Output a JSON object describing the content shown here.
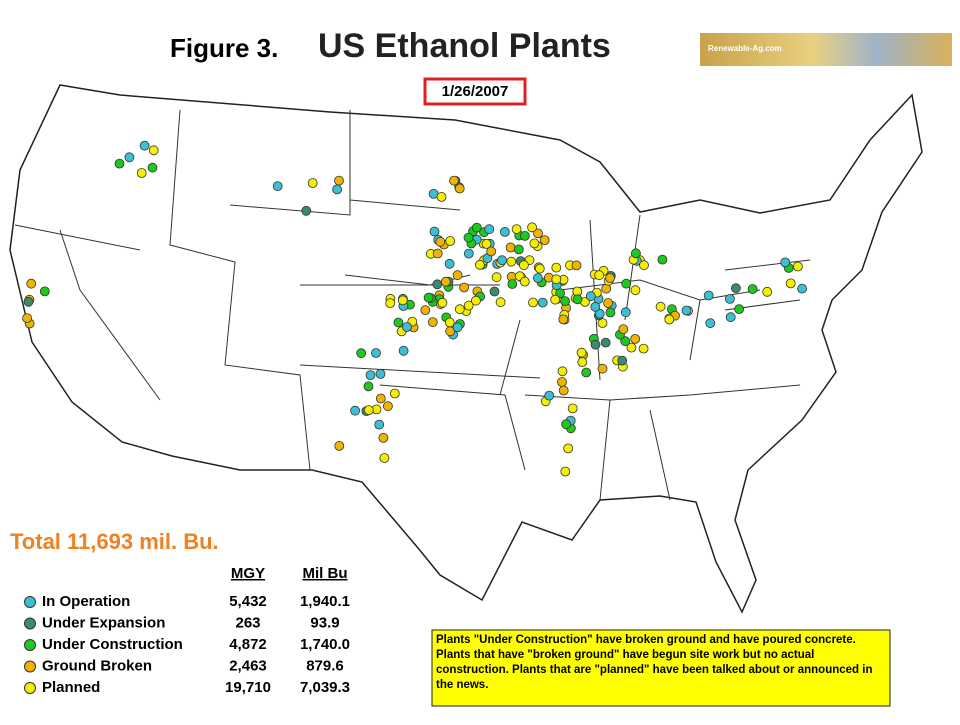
{
  "header": {
    "figure": "Figure 3.",
    "title": "US Ethanol Plants",
    "date": "1/26/2007",
    "logo": "Renewable-Ag.com"
  },
  "total": "Total 11,693 mil. Bu.",
  "legend": {
    "columns": [
      "MGY",
      "Mil Bu"
    ],
    "rows": [
      {
        "label": "In Operation",
        "color": "#3cbfd0",
        "mgy": "5,432",
        "milbu": "1,940.1"
      },
      {
        "label": "Under Expansion",
        "color": "#3d8a6a",
        "mgy": "263",
        "milbu": "93.9"
      },
      {
        "label": "Under Construction",
        "color": "#1ec81e",
        "mgy": "4,872",
        "milbu": "1,740.0"
      },
      {
        "label": "Ground Broken",
        "color": "#f0b400",
        "mgy": "2,463",
        "milbu": "879.6"
      },
      {
        "label": "Planned",
        "color": "#f5ee00",
        "mgy": "19,710",
        "milbu": "7,039.3"
      }
    ]
  },
  "note": "Plants \"Under Construction\" have broken ground and have poured concrete.  Plants that have \"broken ground\" have begun site work but no actual construction.  Plants that are \"planned\" have been talked about or announced in the news."
}
